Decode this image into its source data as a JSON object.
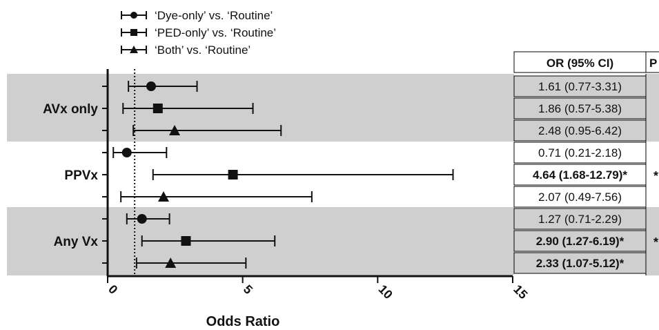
{
  "chart_data": {
    "type": "forest",
    "xlabel": "Odds Ratio",
    "xlim": [
      0,
      15
    ],
    "x_ticks": [
      0,
      5,
      10,
      15
    ],
    "reference_line": 1,
    "legend_position": "top-left",
    "series": [
      {
        "name": "‘Dye-only’ vs. ‘Routine’",
        "marker": "circle"
      },
      {
        "name": "‘PED-only’ vs. ‘Routine’",
        "marker": "square"
      },
      {
        "name": "‘Both’ vs. ‘Routine’",
        "marker": "triangle"
      }
    ],
    "groups": [
      {
        "label": "AVx only",
        "shaded": true,
        "p": "",
        "rows": [
          {
            "series": 0,
            "or": 1.61,
            "lo": 0.77,
            "hi": 3.31,
            "text": "1.61 (0.77-3.31)",
            "bold": false
          },
          {
            "series": 1,
            "or": 1.86,
            "lo": 0.57,
            "hi": 5.38,
            "text": "1.86 (0.57-5.38)",
            "bold": false
          },
          {
            "series": 2,
            "or": 2.48,
            "lo": 0.95,
            "hi": 6.42,
            "text": "2.48 (0.95-6.42)",
            "bold": false
          }
        ]
      },
      {
        "label": "PPVx",
        "shaded": false,
        "p": "*",
        "rows": [
          {
            "series": 0,
            "or": 0.71,
            "lo": 0.21,
            "hi": 2.18,
            "text": "0.71 (0.21-2.18)",
            "bold": false
          },
          {
            "series": 1,
            "or": 4.64,
            "lo": 1.68,
            "hi": 12.79,
            "text": "4.64 (1.68-12.79)*",
            "bold": true
          },
          {
            "series": 2,
            "or": 2.07,
            "lo": 0.49,
            "hi": 7.56,
            "text": "2.07 (0.49-7.56)",
            "bold": false
          }
        ]
      },
      {
        "label": "Any Vx",
        "shaded": true,
        "p": "*",
        "rows": [
          {
            "series": 0,
            "or": 1.27,
            "lo": 0.71,
            "hi": 2.29,
            "text": "1.27 (0.71-2.29)",
            "bold": false
          },
          {
            "series": 1,
            "or": 2.9,
            "lo": 1.27,
            "hi": 6.19,
            "text": "2.90 (1.27-6.19)*",
            "bold": true
          },
          {
            "series": 2,
            "or": 2.33,
            "lo": 1.07,
            "hi": 5.12,
            "text": "2.33 (1.07-5.12)*",
            "bold": true
          }
        ]
      }
    ],
    "table_headers": [
      "OR (95% CI)",
      "P"
    ]
  }
}
